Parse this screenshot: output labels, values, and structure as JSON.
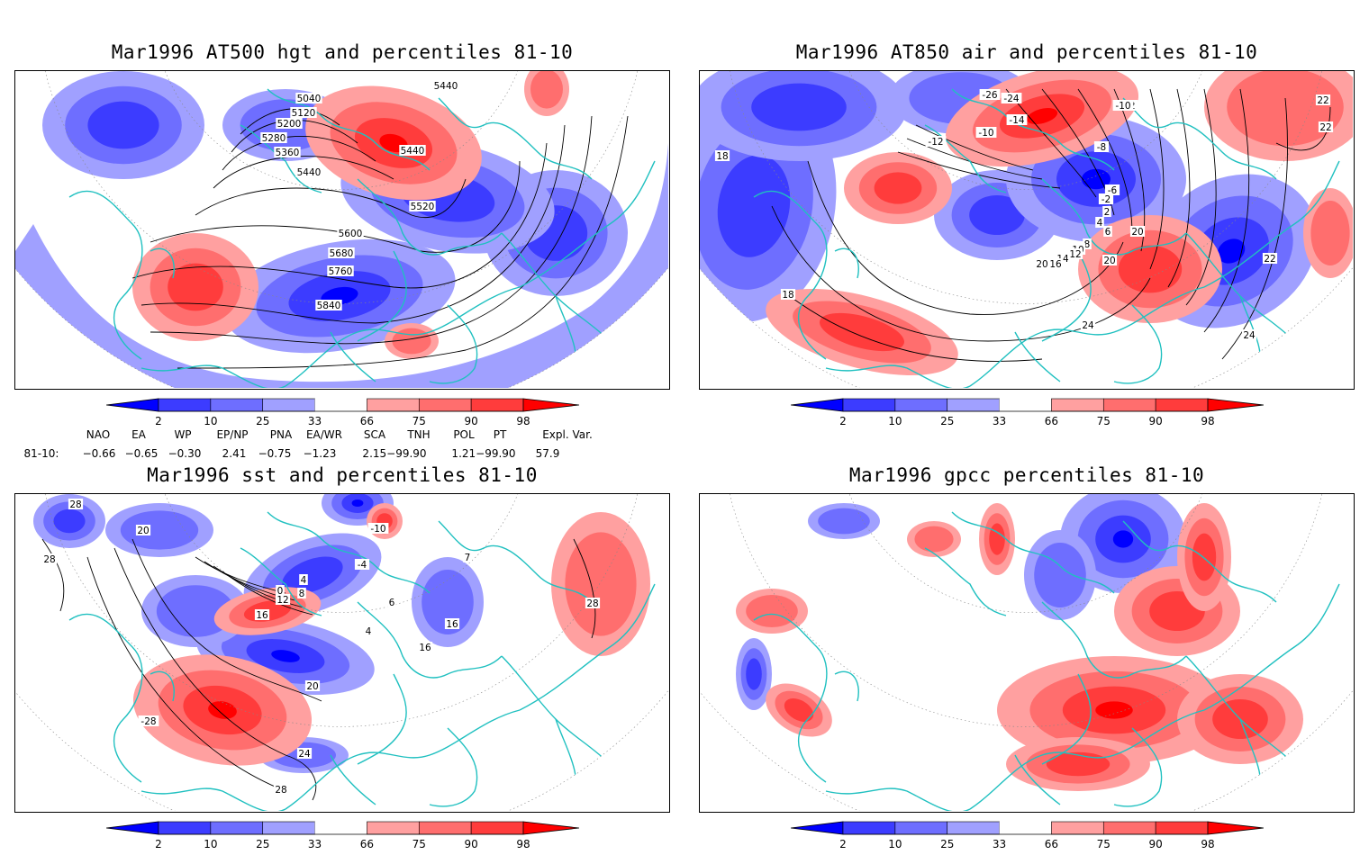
{
  "panels": [
    {
      "title": "Mar1996 AT500 hgt and percentiles 81-10",
      "contour_labels": [
        "5040",
        "5120",
        "5200",
        "5280",
        "5360",
        "5440",
        "5440",
        "5440",
        "5520",
        "5600",
        "5680",
        "5760",
        "5840"
      ]
    },
    {
      "title": "Mar1996 AT850 air and percentiles 81-10",
      "contour_labels": [
        "-26",
        "-24",
        "-14",
        "-12",
        "-10",
        "-12",
        "-10",
        "-8",
        "-6",
        "-2",
        "2",
        "4",
        "6",
        "8",
        "10",
        "12",
        "14",
        "16",
        "18",
        "18",
        "20",
        "20",
        "20",
        "22",
        "22",
        "22",
        "24",
        "24"
      ]
    },
    {
      "title": "Mar1996 sst and percentiles 81-10",
      "contour_labels": [
        "28",
        "28",
        "20",
        "0",
        "4",
        "8",
        "12",
        "16",
        "-4",
        "-10",
        "16",
        "16",
        "20",
        "24",
        "28",
        "28",
        "-28",
        "4",
        "6",
        "7"
      ]
    },
    {
      "title": "Mar1996 gpcc percentiles 81-10",
      "contour_labels": []
    }
  ],
  "colorbar": {
    "labels": [
      "2",
      "10",
      "25",
      "33",
      "66",
      "75",
      "90",
      "98"
    ],
    "colors": [
      "#0000ff",
      "#3c3cff",
      "#6e6eff",
      "#a0a0ff",
      "#ffffff",
      "#ffa0a0",
      "#ff6e6e",
      "#ff3c3c",
      "#ff0000"
    ]
  },
  "indices": {
    "headers": [
      "NAO",
      "EA",
      "WP",
      "EP/NP",
      "PNA",
      "EA/WR",
      "SCA",
      "TNH",
      "POL",
      "PT",
      "Expl. Var."
    ],
    "row_label": "81-10:",
    "values": [
      "−0.66",
      "−0.65",
      "−0.30",
      "2.41",
      "−0.75",
      "−1.23",
      "2.15−99.90",
      "1.21−99.90",
      "57.9"
    ]
  },
  "colors": {
    "coast": "#20c0c0",
    "contour": "#000000",
    "frame": "#000000"
  }
}
